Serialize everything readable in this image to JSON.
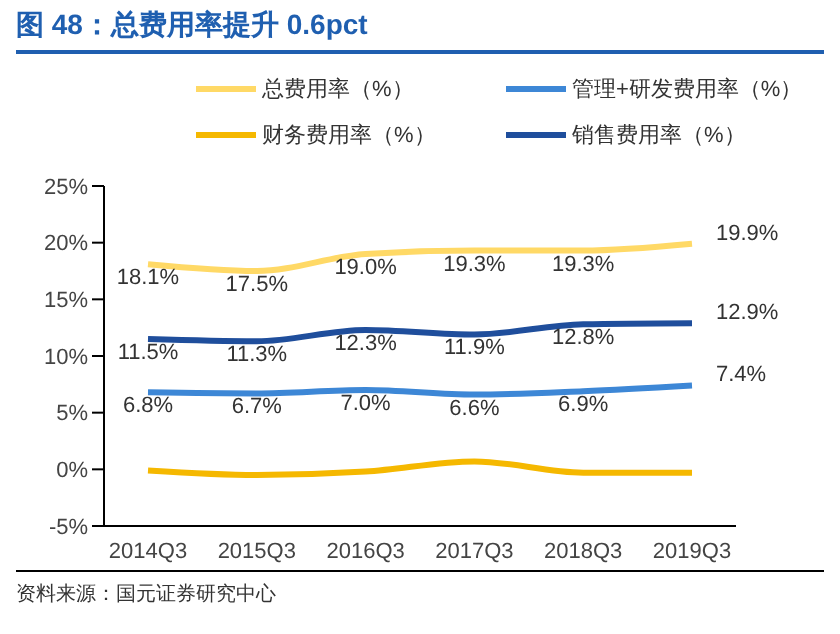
{
  "chart_data": {
    "type": "line",
    "title": "图 48：总费用率提升 0.6pct",
    "categories": [
      "2014Q3",
      "2015Q3",
      "2016Q3",
      "2017Q3",
      "2018Q3",
      "2019Q3"
    ],
    "series": [
      {
        "name": "销售费用率（%）",
        "color": "#1f4e9c",
        "values": [
          11.5,
          11.3,
          12.3,
          11.9,
          12.8,
          12.9
        ],
        "value_labels": [
          "11.5%",
          "11.3%",
          "12.3%",
          "11.9%",
          "12.8%",
          "12.9%"
        ]
      },
      {
        "name": "管理+研发费用率（%）",
        "color": "#3d87d6",
        "values": [
          6.8,
          6.7,
          7.0,
          6.6,
          6.9,
          7.4
        ],
        "value_labels": [
          "6.8%",
          "6.7%",
          "7.0%",
          "6.6%",
          "6.9%",
          "7.4%"
        ]
      },
      {
        "name": "财务费用率（%）",
        "color": "#f5b800",
        "values": [
          -0.1,
          -0.5,
          -0.2,
          0.7,
          -0.3,
          -0.3
        ]
      },
      {
        "name": "总费用率（%）",
        "color": "#ffd966",
        "values": [
          18.1,
          17.5,
          19.0,
          19.3,
          19.3,
          19.9
        ],
        "value_labels": [
          "18.1%",
          "17.5%",
          "19.0%",
          "19.3%",
          "19.3%",
          "19.9%"
        ]
      }
    ],
    "ylim": [
      -5,
      25
    ],
    "yticks": [
      {
        "value": -5,
        "label": "-5%"
      },
      {
        "value": 0,
        "label": "0%"
      },
      {
        "value": 5,
        "label": "5%"
      },
      {
        "value": 10,
        "label": "10%"
      },
      {
        "value": 15,
        "label": "15%"
      },
      {
        "value": 20,
        "label": "20%"
      },
      {
        "value": 25,
        "label": "25%"
      }
    ],
    "grid": false,
    "legend": "top",
    "marker": "none",
    "line_style": "solid",
    "annotations": [
      "资料来源：国元证券研究中心"
    ]
  }
}
